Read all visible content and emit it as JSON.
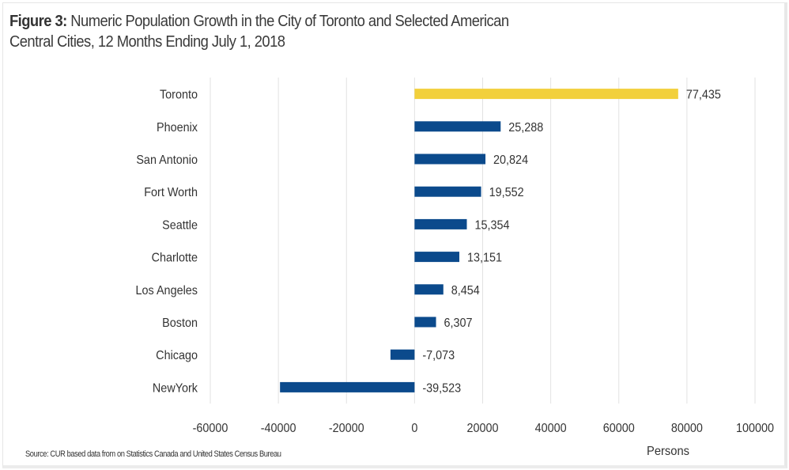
{
  "chart_data": {
    "type": "bar",
    "orientation": "horizontal",
    "title_prefix": "Figure 3:",
    "title_line1": " Numeric Population Growth in the City of Toronto and Selected American",
    "title_line2": "Central Cities, 12 Months Ending July 1, 2018",
    "categories": [
      "Toronto",
      "Phoenix",
      "San Antonio",
      "Fort Worth",
      "Seattle",
      "Charlotte",
      "Los Angeles",
      "Boston",
      "Chicago",
      "NewYork"
    ],
    "values": [
      77435,
      25288,
      20824,
      19552,
      15354,
      13151,
      8454,
      6307,
      -7073,
      -39523
    ],
    "data_labels": [
      "77,435",
      "25,288",
      "20,824",
      "19,552",
      "15,354",
      "13,151",
      "8,454",
      "6,307",
      "-7,073",
      "-39,523"
    ],
    "colors": [
      "#f2d03b",
      "#0b4a8c",
      "#0b4a8c",
      "#0b4a8c",
      "#0b4a8c",
      "#0b4a8c",
      "#0b4a8c",
      "#0b4a8c",
      "#0b4a8c",
      "#0b4a8c"
    ],
    "xlim": [
      -60000,
      100000
    ],
    "xticks": [
      -60000,
      -40000,
      -20000,
      0,
      20000,
      40000,
      60000,
      80000,
      100000
    ],
    "xtick_labels": [
      "-60000",
      "-40000",
      "-20000",
      "0",
      "20000",
      "40000",
      "60000",
      "80000",
      "100000"
    ],
    "xlabel": "Persons",
    "ylabel": "",
    "grid": "vertical",
    "legend": "none",
    "source": "Source: CUR based data from on Statistics Canada and United States Census Bureau"
  }
}
